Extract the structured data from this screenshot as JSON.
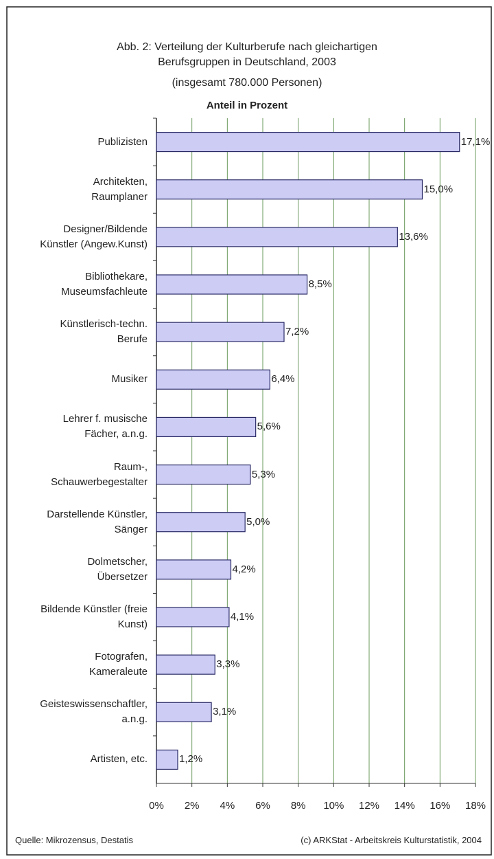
{
  "chart_data": {
    "type": "bar",
    "orientation": "horizontal",
    "title": "Abb. 2: Verteilung der Kulturberufe nach gleichartigen\nBerufsgruppen in Deutschland, 2003",
    "subtitle": "(insgesamt 780.000 Personen)",
    "axis_label": "Anteil in Prozent",
    "categories": [
      "Publizisten",
      "Architekten,\nRaumplaner",
      "Designer/Bildende\nKünstler (Angew.Kunst)",
      "Bibliothekare,\nMuseumsfachleute",
      "Künstlerisch-techn.\nBerufe",
      "Musiker",
      "Lehrer f. musische\nFächer, a.n.g.",
      "Raum-,\nSchauwerbegestalter",
      "Darstellende Künstler,\nSänger",
      "Dolmetscher,\nÜbersetzer",
      "Bildende Künstler (freie\nKunst)",
      "Fotografen,\nKameraleute",
      "Geisteswissenschaftler,\na.n.g.",
      "Artisten, etc."
    ],
    "values": [
      17.1,
      15.0,
      13.6,
      8.5,
      7.2,
      6.4,
      5.6,
      5.3,
      5.0,
      4.2,
      4.1,
      3.3,
      3.1,
      1.2
    ],
    "value_labels": [
      "17,1%",
      "15,0%",
      "13,6%",
      "8,5%",
      "7,2%",
      "6,4%",
      "5,6%",
      "5,3%",
      "5,0%",
      "4,2%",
      "4,1%",
      "3,3%",
      "3,1%",
      "1,2%"
    ],
    "color": "#ccccf5",
    "xlim": [
      0,
      18
    ],
    "xticks": [
      {
        "value": 0,
        "label": "0%"
      },
      {
        "value": 2,
        "label": "2%"
      },
      {
        "value": 4,
        "label": "4%"
      },
      {
        "value": 6,
        "label": "6%"
      },
      {
        "value": 8,
        "label": "8%"
      },
      {
        "value": 10,
        "label": "10%"
      },
      {
        "value": 12,
        "label": "12%"
      },
      {
        "value": 14,
        "label": "14%"
      },
      {
        "value": 16,
        "label": "16%"
      },
      {
        "value": 18,
        "label": "18%"
      }
    ],
    "grid": true,
    "source": "Quelle: Mikrozensus, Destatis",
    "credit": "(c) ARKStat - Arbeitskreis Kulturstatistik, 2004"
  }
}
